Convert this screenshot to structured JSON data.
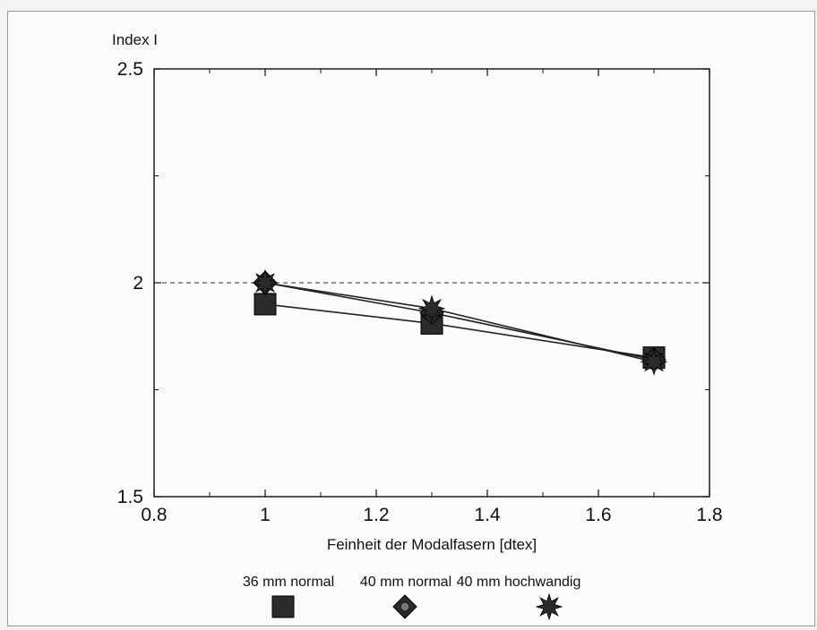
{
  "chart_data": {
    "type": "line",
    "ylabel": "Index I",
    "xlabel": "Feinheit der Modalfasern [dtex]",
    "xlim": [
      0.8,
      1.8
    ],
    "ylim": [
      1.5,
      2.5
    ],
    "x_ticks": [
      "0.8",
      "1",
      "1.2",
      "1.4",
      "1.6",
      "1.8"
    ],
    "y_ticks": [
      "1.5",
      "2",
      "2.5"
    ],
    "reference_line": {
      "y": 2,
      "style": "dashed"
    },
    "series": [
      {
        "name": "36 mm normal",
        "marker": "square-icon",
        "points": [
          {
            "x": 1.0,
            "y": 1.95
          },
          {
            "x": 1.3,
            "y": 1.905
          },
          {
            "x": 1.7,
            "y": 1.825
          }
        ]
      },
      {
        "name": "40 mm normal",
        "marker": "diamond-icon",
        "points": [
          {
            "x": 1.0,
            "y": 2.0
          },
          {
            "x": 1.3,
            "y": 1.93
          },
          {
            "x": 1.7,
            "y": 1.82
          }
        ]
      },
      {
        "name": "40 mm hochwandig",
        "marker": "star-icon",
        "points": [
          {
            "x": 1.0,
            "y": 2.0
          },
          {
            "x": 1.3,
            "y": 1.94
          },
          {
            "x": 1.7,
            "y": 1.815
          }
        ]
      }
    ],
    "grid": false,
    "legend_position": "bottom",
    "colors": {
      "line": "#222222",
      "marker": "#2b2b2b",
      "dashed": "#333333"
    }
  }
}
